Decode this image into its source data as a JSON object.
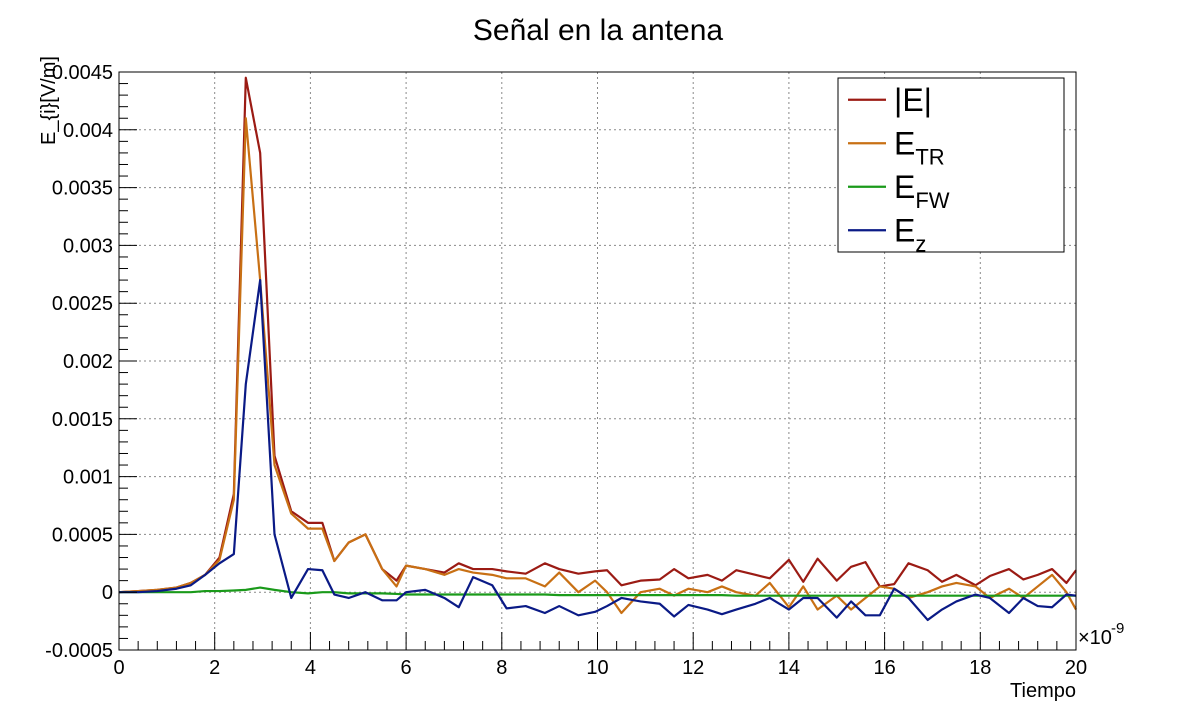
{
  "chart_data": {
    "type": "line",
    "title": "Señal en la antena",
    "xlabel": "Tiempo",
    "ylabel": "E_{i}[V/m]",
    "x_multiplier": "×10",
    "x_multiplier_exp": "-9",
    "xlim": [
      0,
      20
    ],
    "ylim": [
      -0.0005,
      0.0045
    ],
    "x_ticks": [
      0,
      2,
      4,
      6,
      8,
      10,
      12,
      14,
      16,
      18,
      20
    ],
    "x_tick_labels": [
      "0",
      "2",
      "4",
      "6",
      "8",
      "10",
      "12",
      "14",
      "16",
      "18",
      "20"
    ],
    "y_ticks": [
      -0.0005,
      0,
      0.0005,
      0.001,
      0.0015,
      0.002,
      0.0025,
      0.003,
      0.0035,
      0.004,
      0.0045
    ],
    "y_tick_labels": [
      "-0.0005",
      "0",
      "0.0005",
      "0.001",
      "0.0015",
      "0.002",
      "0.0025",
      "0.003",
      "0.0035",
      "0.004",
      "0.0045"
    ],
    "grid": true,
    "legend_position": "top-right",
    "x": [
      0,
      0.4,
      0.8,
      1.2,
      1.5,
      1.8,
      2.1,
      2.4,
      2.65,
      2.95,
      3.25,
      3.6,
      3.95,
      4.25,
      4.5,
      4.8,
      5.15,
      5.5,
      5.8,
      6.0,
      6.4,
      6.8,
      7.1,
      7.4,
      7.8,
      8.1,
      8.5,
      8.9,
      9.2,
      9.6,
      9.95,
      10.2,
      10.5,
      10.9,
      11.3,
      11.6,
      11.9,
      12.3,
      12.6,
      12.9,
      13.3,
      13.6,
      14.0,
      14.3,
      14.6,
      15.0,
      15.3,
      15.6,
      15.9,
      16.2,
      16.5,
      16.9,
      17.2,
      17.5,
      17.9,
      18.2,
      18.6,
      18.9,
      19.2,
      19.5,
      19.8,
      20.0
    ],
    "series": [
      {
        "name": "|E|",
        "color": "#9b1b14",
        "values": [
          0.0,
          1e-05,
          2e-05,
          4e-05,
          8e-05,
          0.00015,
          0.0003,
          0.00085,
          0.00445,
          0.0038,
          0.00118,
          0.0007,
          0.0006,
          0.0006,
          0.00027,
          0.00043,
          0.0005,
          0.0002,
          0.0001,
          0.00023,
          0.0002,
          0.00017,
          0.00025,
          0.0002,
          0.0002,
          0.00018,
          0.00016,
          0.00025,
          0.0002,
          0.00016,
          0.00018,
          0.00019,
          6e-05,
          0.0001,
          0.00011,
          0.0002,
          0.00012,
          0.00015,
          0.0001,
          0.00019,
          0.00015,
          0.00012,
          0.00028,
          9e-05,
          0.00029,
          0.0001,
          0.00022,
          0.00026,
          5e-05,
          7e-05,
          0.00025,
          0.00019,
          9e-05,
          0.00015,
          6e-05,
          0.00014,
          0.0002,
          0.00011,
          0.00015,
          0.0002,
          8e-05,
          0.00019
        ]
      },
      {
        "name": "TR",
        "color": "#c87014",
        "values": [
          0.0,
          1e-05,
          2e-05,
          4e-05,
          8e-05,
          0.00015,
          0.00028,
          0.0008,
          0.0041,
          0.0027,
          0.0011,
          0.00068,
          0.00055,
          0.00055,
          0.00027,
          0.00043,
          0.0005,
          0.0002,
          5e-05,
          0.00023,
          0.0002,
          0.00015,
          0.0002,
          0.00017,
          0.00015,
          0.00012,
          0.00012,
          5e-05,
          0.00017,
          0.0,
          0.0001,
          0.0,
          -0.00018,
          0.0,
          3e-05,
          -3e-05,
          3e-05,
          0.0,
          5e-05,
          0.0,
          -3e-05,
          8e-05,
          -0.00013,
          5e-05,
          -0.00015,
          -3e-05,
          -0.00015,
          -5e-05,
          5e-05,
          3e-05,
          -5e-05,
          0.0,
          5e-05,
          8e-05,
          5e-05,
          -5e-05,
          3e-05,
          -5e-05,
          5e-05,
          0.00015,
          0.0,
          -0.00015
        ]
      },
      {
        "name": "FW",
        "color": "#1a9a1a",
        "values": [
          0.0,
          0.0,
          0.0,
          0.0,
          0.0,
          1e-05,
          1e-05,
          1.5e-05,
          2e-05,
          4e-05,
          2e-05,
          0.0,
          -1e-05,
          0.0,
          0.0,
          -1e-05,
          -1e-05,
          -1e-05,
          -1.5e-05,
          -2e-05,
          -2e-05,
          -2e-05,
          -2e-05,
          -2e-05,
          -2e-05,
          -2e-05,
          -2e-05,
          -2e-05,
          -2.5e-05,
          -2.5e-05,
          -2.5e-05,
          -2.5e-05,
          -2.5e-05,
          -2.5e-05,
          -2.5e-05,
          -2.5e-05,
          -2.5e-05,
          -2.5e-05,
          -2.5e-05,
          -3e-05,
          -3e-05,
          -3e-05,
          -3e-05,
          -3e-05,
          -3e-05,
          -3e-05,
          -3e-05,
          -3e-05,
          -3e-05,
          -3e-05,
          -3e-05,
          -3e-05,
          -3e-05,
          -3e-05,
          -3e-05,
          -3e-05,
          -3e-05,
          -3e-05,
          -3e-05,
          -3e-05,
          -3e-05,
          -3e-05
        ]
      },
      {
        "name": "z",
        "color": "#0a1a86",
        "values": [
          0.0,
          0.0,
          1e-05,
          3e-05,
          6e-05,
          0.00015,
          0.00025,
          0.00033,
          0.0018,
          0.0027,
          0.0005,
          -5e-05,
          0.0002,
          0.00019,
          -2e-05,
          -5e-05,
          0.0,
          -7e-05,
          -7e-05,
          0.0,
          2e-05,
          -5e-05,
          -0.00013,
          0.00013,
          6e-05,
          -0.00014,
          -0.00012,
          -0.00018,
          -0.00012,
          -0.0002,
          -0.00017,
          -0.00012,
          -5e-05,
          -8e-05,
          -0.0001,
          -0.00021,
          -0.00011,
          -0.00015,
          -0.00019,
          -0.00015,
          -0.0001,
          -5e-05,
          -0.00015,
          -5e-05,
          -5e-05,
          -0.00022,
          -8e-05,
          -0.0002,
          -0.0002,
          3e-05,
          -5e-05,
          -0.00024,
          -0.00015,
          -8e-05,
          -2e-05,
          -5e-05,
          -0.00018,
          -5e-05,
          -0.00012,
          -0.00013,
          -2e-05,
          -3e-05
        ]
      }
    ]
  }
}
